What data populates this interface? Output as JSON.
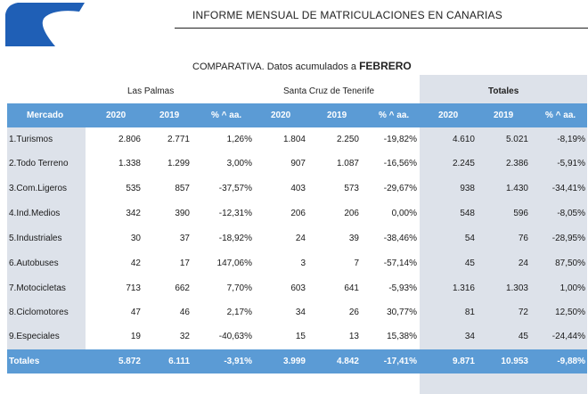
{
  "header": {
    "title": "INFORME  MENSUAL DE MATRICULACIONES EN CANARIAS",
    "subtitle_prefix": "COMPARATIVA. Datos acumulados a ",
    "subtitle_month": "FEBRERO",
    "logo": "logo-swoosh-icon",
    "logo_color": "#1f5fb6"
  },
  "groups": {
    "las_palmas": "Las Palmas",
    "tenerife": "Santa Cruz de Tenerife",
    "totales": "Totales"
  },
  "columns": {
    "mercado": "Mercado",
    "c2020": "2020",
    "c2019": "2019",
    "pct": "% ^ aa."
  },
  "colors": {
    "header_blue": "#5b9bd5",
    "shade_grey": "#dde2ea"
  },
  "rows": [
    {
      "mercado": "1.Turismos",
      "lp2020": "2.806",
      "lp2019": "2.771",
      "lppct": "1,26%",
      "tf2020": "1.804",
      "tf2019": "2.250",
      "tfpct": "-19,82%",
      "t2020": "4.610",
      "t2019": "5.021",
      "tpct": "-8,19%"
    },
    {
      "mercado": "2.Todo Terreno",
      "lp2020": "1.338",
      "lp2019": "1.299",
      "lppct": "3,00%",
      "tf2020": "907",
      "tf2019": "1.087",
      "tfpct": "-16,56%",
      "t2020": "2.245",
      "t2019": "2.386",
      "tpct": "-5,91%"
    },
    {
      "mercado": "3.Com.Ligeros",
      "lp2020": "535",
      "lp2019": "857",
      "lppct": "-37,57%",
      "tf2020": "403",
      "tf2019": "573",
      "tfpct": "-29,67%",
      "t2020": "938",
      "t2019": "1.430",
      "tpct": "-34,41%"
    },
    {
      "mercado": "4.Ind.Medios",
      "lp2020": "342",
      "lp2019": "390",
      "lppct": "-12,31%",
      "tf2020": "206",
      "tf2019": "206",
      "tfpct": "0,00%",
      "t2020": "548",
      "t2019": "596",
      "tpct": "-8,05%"
    },
    {
      "mercado": "5.Industriales",
      "lp2020": "30",
      "lp2019": "37",
      "lppct": "-18,92%",
      "tf2020": "24",
      "tf2019": "39",
      "tfpct": "-38,46%",
      "t2020": "54",
      "t2019": "76",
      "tpct": "-28,95%"
    },
    {
      "mercado": "6.Autobuses",
      "lp2020": "42",
      "lp2019": "17",
      "lppct": "147,06%",
      "tf2020": "3",
      "tf2019": "7",
      "tfpct": "-57,14%",
      "t2020": "45",
      "t2019": "24",
      "tpct": "87,50%"
    },
    {
      "mercado": "7.Motocicletas",
      "lp2020": "713",
      "lp2019": "662",
      "lppct": "7,70%",
      "tf2020": "603",
      "tf2019": "641",
      "tfpct": "-5,93%",
      "t2020": "1.316",
      "t2019": "1.303",
      "tpct": "1,00%"
    },
    {
      "mercado": "8.Ciclomotores",
      "lp2020": "47",
      "lp2019": "46",
      "lppct": "2,17%",
      "tf2020": "34",
      "tf2019": "26",
      "tfpct": "30,77%",
      "t2020": "81",
      "t2019": "72",
      "tpct": "12,50%"
    },
    {
      "mercado": "9.Especiales",
      "lp2020": "19",
      "lp2019": "32",
      "lppct": "-40,63%",
      "tf2020": "15",
      "tf2019": "13",
      "tfpct": "15,38%",
      "t2020": "34",
      "t2019": "45",
      "tpct": "-24,44%"
    }
  ],
  "totals": {
    "label": "Totales",
    "lp2020": "5.872",
    "lp2019": "6.111",
    "lppct": "-3,91%",
    "tf2020": "3.999",
    "tf2019": "4.842",
    "tfpct": "-17,41%",
    "t2020": "9.871",
    "t2019": "10.953",
    "tpct": "-9,88%"
  }
}
